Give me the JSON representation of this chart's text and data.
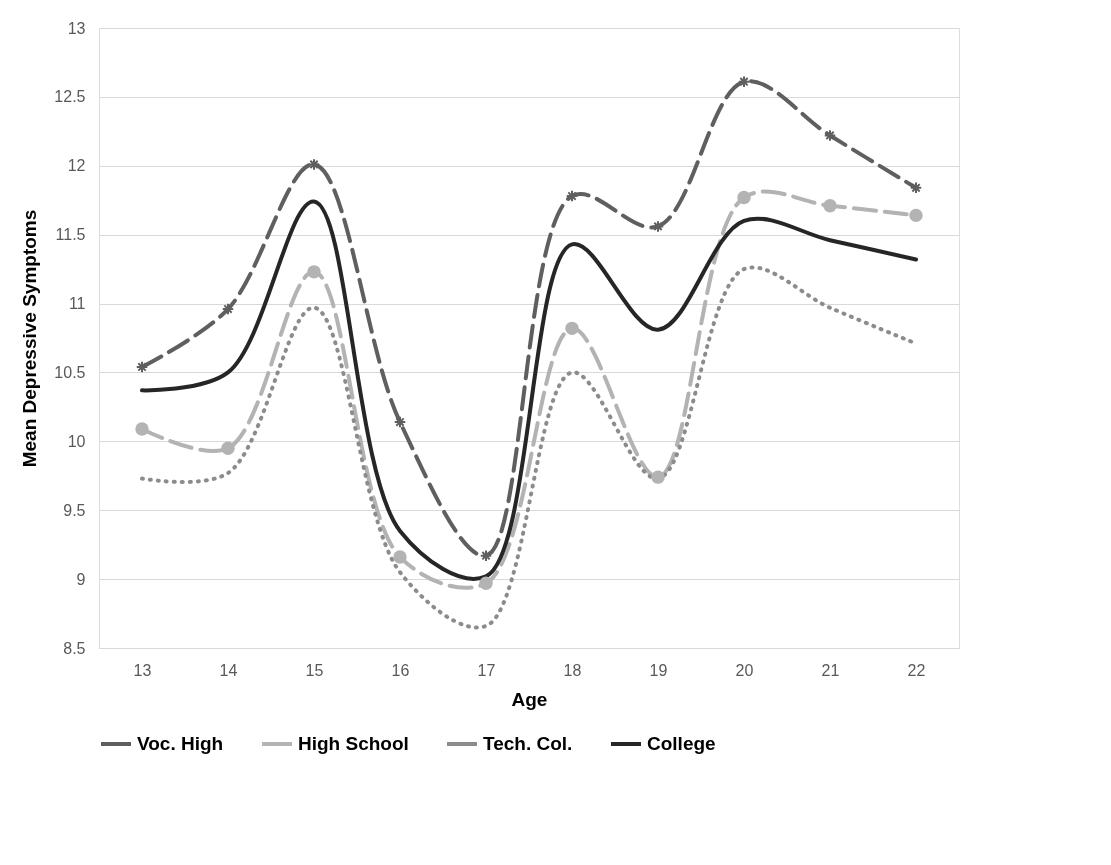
{
  "chart_data": {
    "type": "line",
    "xlabel": "Age",
    "ylabel": "Mean Depressive Symptoms",
    "categories": [
      "13",
      "14",
      "15",
      "16",
      "17",
      "18",
      "19",
      "20",
      "21",
      "22"
    ],
    "series": [
      {
        "name": "Voc. High",
        "color": "#5f5f5f",
        "line_style": "dashed",
        "marker": "cross",
        "values": [
          10.54,
          10.96,
          12.01,
          10.14,
          9.17,
          11.78,
          11.56,
          12.61,
          12.22,
          11.84
        ]
      },
      {
        "name": "High School",
        "color": "#b3b3b3",
        "line_style": "dashed",
        "marker": "circle",
        "values": [
          10.09,
          9.95,
          11.23,
          9.16,
          8.97,
          10.82,
          9.74,
          11.77,
          11.71,
          11.64
        ]
      },
      {
        "name": "Tech. Col.",
        "color": "#8c8c8c",
        "line_style": "dotted",
        "marker": "none",
        "values": [
          9.73,
          9.77,
          10.97,
          9.05,
          8.66,
          10.5,
          9.73,
          11.25,
          10.97,
          10.71
        ]
      },
      {
        "name": "College",
        "color": "#262626",
        "line_style": "solid",
        "marker": "none",
        "values": [
          10.37,
          10.5,
          11.74,
          9.35,
          9.02,
          11.43,
          10.81,
          11.6,
          11.46,
          11.32
        ]
      }
    ],
    "ylim": [
      8.5,
      13
    ],
    "yticks": [
      8.5,
      9,
      9.5,
      10,
      10.5,
      11,
      11.5,
      12,
      12.5,
      13
    ],
    "grid": "y",
    "legend": "bottom"
  }
}
